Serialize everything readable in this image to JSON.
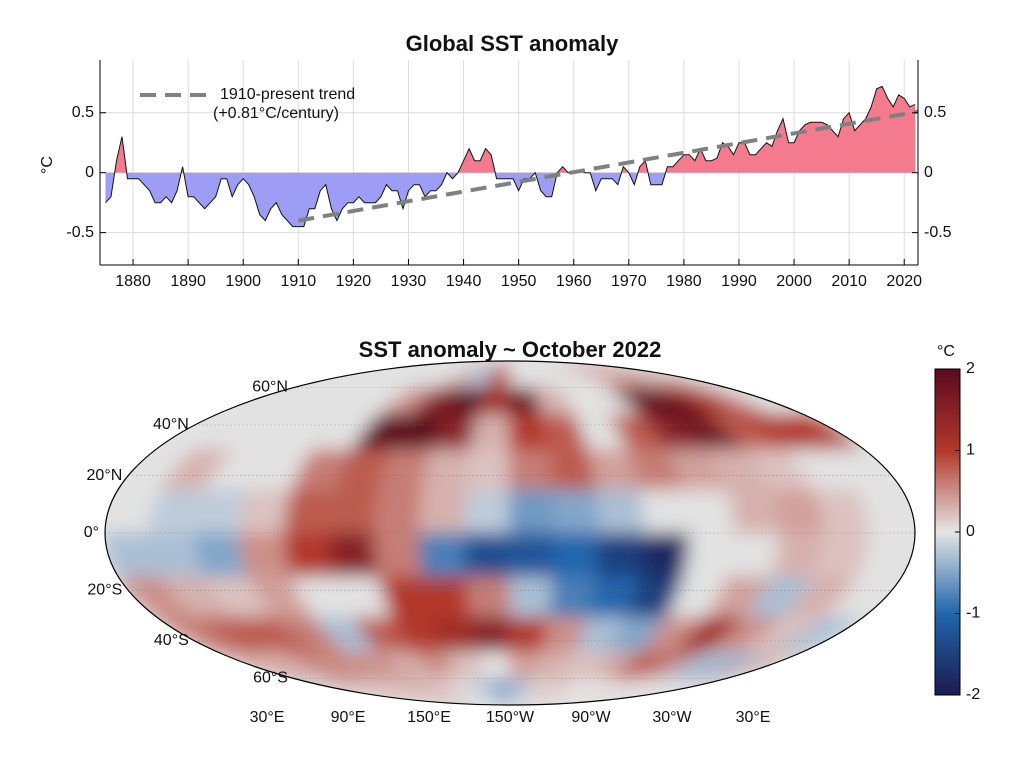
{
  "chart_data": [
    {
      "type": "area",
      "title": "Global SST anomaly",
      "ylabel": "°C",
      "x": [
        1875,
        1876,
        1877,
        1878,
        1879,
        1880,
        1881,
        1882,
        1883,
        1884,
        1885,
        1886,
        1887,
        1888,
        1889,
        1890,
        1891,
        1892,
        1893,
        1894,
        1895,
        1896,
        1897,
        1898,
        1899,
        1900,
        1901,
        1902,
        1903,
        1904,
        1905,
        1906,
        1907,
        1908,
        1909,
        1910,
        1911,
        1912,
        1913,
        1914,
        1915,
        1916,
        1917,
        1918,
        1919,
        1920,
        1921,
        1922,
        1923,
        1924,
        1925,
        1926,
        1927,
        1928,
        1929,
        1930,
        1931,
        1932,
        1933,
        1934,
        1935,
        1936,
        1937,
        1938,
        1939,
        1940,
        1941,
        1942,
        1943,
        1944,
        1945,
        1946,
        1947,
        1948,
        1949,
        1950,
        1951,
        1952,
        1953,
        1954,
        1955,
        1956,
        1957,
        1958,
        1959,
        1960,
        1961,
        1962,
        1963,
        1964,
        1965,
        1966,
        1967,
        1968,
        1969,
        1970,
        1971,
        1972,
        1973,
        1974,
        1975,
        1976,
        1977,
        1978,
        1979,
        1980,
        1981,
        1982,
        1983,
        1984,
        1985,
        1986,
        1987,
        1988,
        1989,
        1990,
        1991,
        1992,
        1993,
        1994,
        1995,
        1996,
        1997,
        1998,
        1999,
        2000,
        2001,
        2002,
        2003,
        2004,
        2005,
        2006,
        2007,
        2008,
        2009,
        2010,
        2011,
        2012,
        2013,
        2014,
        2015,
        2016,
        2017,
        2018,
        2019,
        2020,
        2021,
        2022
      ],
      "values": [
        -0.25,
        -0.2,
        0.1,
        0.3,
        -0.05,
        -0.05,
        -0.05,
        -0.1,
        -0.15,
        -0.25,
        -0.25,
        -0.2,
        -0.25,
        -0.15,
        0.05,
        -0.2,
        -0.2,
        -0.25,
        -0.3,
        -0.25,
        -0.2,
        -0.05,
        -0.05,
        -0.2,
        -0.1,
        -0.05,
        -0.1,
        -0.2,
        -0.35,
        -0.4,
        -0.3,
        -0.25,
        -0.35,
        -0.4,
        -0.45,
        -0.45,
        -0.45,
        -0.3,
        -0.3,
        -0.15,
        -0.1,
        -0.3,
        -0.4,
        -0.3,
        -0.25,
        -0.25,
        -0.2,
        -0.25,
        -0.25,
        -0.25,
        -0.2,
        -0.1,
        -0.15,
        -0.15,
        -0.3,
        -0.15,
        -0.1,
        -0.1,
        -0.2,
        -0.15,
        -0.15,
        -0.1,
        0.0,
        -0.05,
        0.0,
        0.1,
        0.2,
        0.1,
        0.1,
        0.2,
        0.15,
        -0.05,
        -0.05,
        -0.05,
        -0.05,
        -0.15,
        -0.05,
        -0.05,
        0.0,
        -0.15,
        -0.2,
        -0.2,
        0.0,
        0.05,
        0.0,
        0.0,
        0.02,
        0.0,
        0.0,
        -0.15,
        -0.05,
        -0.05,
        -0.05,
        -0.1,
        0.05,
        0.0,
        -0.1,
        0.05,
        0.1,
        -0.1,
        -0.1,
        -0.1,
        0.05,
        0.05,
        0.1,
        0.15,
        0.15,
        0.1,
        0.2,
        0.1,
        0.1,
        0.12,
        0.25,
        0.22,
        0.15,
        0.25,
        0.25,
        0.15,
        0.15,
        0.2,
        0.25,
        0.22,
        0.35,
        0.45,
        0.25,
        0.25,
        0.35,
        0.4,
        0.42,
        0.42,
        0.42,
        0.4,
        0.35,
        0.3,
        0.45,
        0.5,
        0.35,
        0.4,
        0.45,
        0.55,
        0.7,
        0.72,
        0.62,
        0.55,
        0.65,
        0.62,
        0.55,
        0.57
      ],
      "positive_color": "#f47b8e",
      "negative_color": "#9d9df5",
      "line_color": "#111111",
      "trend": {
        "name": "1910-present trend",
        "subtitle": "(+0.81°C/century)",
        "x": [
          1910,
          2022.5
        ],
        "values": [
          -0.4,
          0.51
        ],
        "color": "#808080"
      },
      "xlim": [
        1874,
        2022.5
      ],
      "ylim": [
        -0.77,
        0.94
      ],
      "xticks": [
        1880,
        1890,
        1900,
        1910,
        1920,
        1930,
        1940,
        1950,
        1960,
        1970,
        1980,
        1990,
        2000,
        2010,
        2020
      ],
      "yticks": [
        -0.5,
        0,
        0.5
      ],
      "grid": true
    },
    {
      "type": "heatmap",
      "title": "SST anomaly ~ October 2022",
      "lon": [
        40,
        60,
        80,
        100,
        120,
        140,
        160,
        180,
        200,
        220,
        240,
        260,
        280,
        300,
        320,
        340,
        360,
        380
      ],
      "lat": [
        67.5,
        52.5,
        37.5,
        22.5,
        7.5,
        -7.5,
        -22.5,
        -37.5,
        -52.5,
        -67.5
      ],
      "values": [
        [
          null,
          null,
          null,
          null,
          null,
          null,
          0.3,
          -0.3,
          0.8,
          null,
          null,
          null,
          null,
          0.2,
          0.5,
          0.3,
          0.6,
          null
        ],
        [
          null,
          null,
          null,
          null,
          null,
          0.5,
          1.5,
          2.0,
          1.2,
          1.8,
          0.3,
          null,
          null,
          1.8,
          2.0,
          1.2,
          0.8,
          null
        ],
        [
          null,
          null,
          null,
          null,
          null,
          2.0,
          2.0,
          1.5,
          0.3,
          1.0,
          0.8,
          null,
          0.8,
          1.5,
          1.8,
          0.8,
          1.0,
          1.0
        ],
        [
          null,
          0.3,
          null,
          null,
          0.6,
          0.8,
          0.6,
          0.3,
          0.2,
          0.6,
          0.8,
          0.4,
          0.6,
          0.4,
          0.3,
          0.2,
          null,
          null
        ],
        [
          null,
          -0.2,
          -0.2,
          0.2,
          0.8,
          0.8,
          0.6,
          0.3,
          -0.2,
          -0.6,
          -0.5,
          -0.3,
          null,
          null,
          0.3,
          0.4,
          0.2,
          null
        ],
        [
          -0.3,
          -0.3,
          -0.5,
          0.5,
          1.0,
          1.5,
          0.6,
          -0.8,
          -1.3,
          -1.2,
          -1.0,
          -1.5,
          -1.8,
          null,
          null,
          0.3,
          0.2,
          null
        ],
        [
          0.5,
          0.3,
          0.2,
          0.4,
          null,
          null,
          1.0,
          1.0,
          0.6,
          -0.3,
          -0.8,
          -1.0,
          -1.5,
          null,
          0.4,
          -0.3,
          0.3,
          null
        ],
        [
          0.6,
          0.8,
          0.8,
          0.6,
          -0.3,
          0.8,
          1.0,
          1.2,
          1.5,
          1.0,
          0.5,
          -0.3,
          -0.5,
          0.5,
          1.2,
          0.5,
          0.2,
          -0.3
        ],
        [
          0.4,
          0.3,
          0.6,
          0.5,
          0.5,
          0.3,
          0.5,
          0.2,
          0.0,
          0.4,
          0.3,
          0.2,
          0.3,
          0.8,
          0.6,
          -0.3,
          -0.4,
          0.3
        ],
        [
          0.2,
          0.3,
          0.2,
          0.2,
          0.3,
          0.2,
          0.0,
          -0.2,
          -0.5,
          -0.3,
          0.1,
          0.2,
          0.0,
          0.0,
          0.1,
          0.0,
          0.0,
          0.1
        ]
      ],
      "land_color": "#e2e2e2",
      "colormap": [
        "#1b1b4f",
        "#2166ac",
        "#e5e5e5",
        "#b2382b",
        "#5c0a1e"
      ],
      "colorbar_label": "°C",
      "clim": [
        -2,
        2
      ],
      "cticks": [
        -2,
        -1,
        0,
        1,
        2
      ],
      "lonticks": [
        {
          "value": 30,
          "label": "30°E"
        },
        {
          "value": 90,
          "label": "90°E"
        },
        {
          "value": 150,
          "label": "150°E"
        },
        {
          "value": 210,
          "label": "150°W"
        },
        {
          "value": 270,
          "label": "90°W"
        },
        {
          "value": 330,
          "label": "30°W"
        },
        {
          "value": 390,
          "label": "30°E"
        }
      ],
      "latticks": [
        {
          "value": 60,
          "label": "60°N"
        },
        {
          "value": 40,
          "label": "40°N"
        },
        {
          "value": 20,
          "label": "20°N"
        },
        {
          "value": 0,
          "label": "0°"
        },
        {
          "value": -20,
          "label": "20°S"
        },
        {
          "value": -40,
          "label": "40°S"
        },
        {
          "value": -60,
          "label": "60°S"
        }
      ]
    }
  ]
}
